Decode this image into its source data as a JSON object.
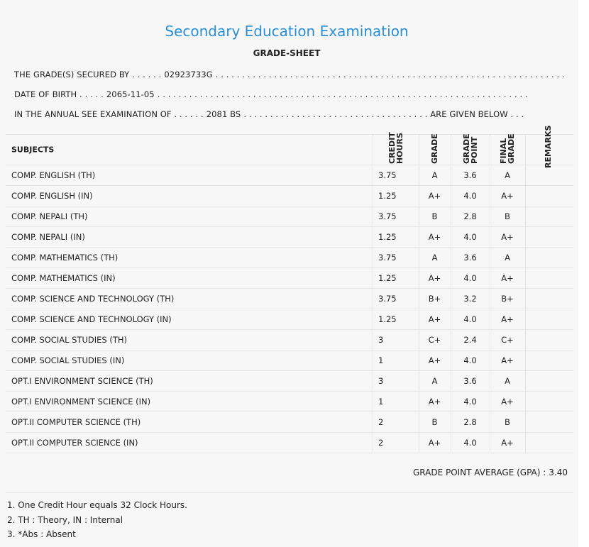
{
  "header": {
    "title": "Secondary Education Examination",
    "subtitle": "GRADE-SHEET"
  },
  "info": [
    {
      "label": "THE GRADE(S) SECURED BY . . . . . .",
      "value": "02923733G",
      "trail": ". . . . . . . . . . . . . . . . . . . . . . . . . . . . . . . . . . . . . . . . . . . . . . . . . . . . . . . . . . . . . . . . . ."
    },
    {
      "label": "DATE OF BIRTH . . . . .",
      "value": "2065-11-05",
      "trail": ". . . . . . . . . . . . . . . . . . . . . . . . . . . . . . . . . . . . . . . . . . . . . . . . . . . . . . . . . . . . . . . . . . . . . ."
    },
    {
      "label": "IN THE ANNUAL SEE EXAMINATION OF . . . . . .",
      "value": "2081 BS",
      "trail": ". . . . . . . . . . . . . . . . . . . . . . . . . . . . . . . . . . . ARE GIVEN BELOW . . ."
    }
  ],
  "table": {
    "columns": [
      "SUBJECTS",
      "CREDIT HOURS",
      "GRADE",
      "GRADE POINT",
      "FINAL GRADE",
      "REMARKS"
    ],
    "rows": [
      [
        "COMP. ENGLISH (TH)",
        "3.75",
        "A",
        "3.6",
        "A"
      ],
      [
        "COMP. ENGLISH (IN)",
        "1.25",
        "A+",
        "4.0",
        "A+"
      ],
      [
        "COMP. NEPALI (TH)",
        "3.75",
        "B",
        "2.8",
        "B"
      ],
      [
        "COMP. NEPALI (IN)",
        "1.25",
        "A+",
        "4.0",
        "A+"
      ],
      [
        "COMP. MATHEMATICS (TH)",
        "3.75",
        "A",
        "3.6",
        "A"
      ],
      [
        "COMP. MATHEMATICS (IN)",
        "1.25",
        "A+",
        "4.0",
        "A+"
      ],
      [
        "COMP. SCIENCE AND TECHNOLOGY (TH)",
        "3.75",
        "B+",
        "3.2",
        "B+"
      ],
      [
        "COMP. SCIENCE AND TECHNOLOGY (IN)",
        "1.25",
        "A+",
        "4.0",
        "A+"
      ],
      [
        "COMP. SOCIAL STUDIES (TH)",
        "3",
        "C+",
        "2.4",
        "C+"
      ],
      [
        "COMP. SOCIAL STUDIES (IN)",
        "1",
        "A+",
        "4.0",
        "A+"
      ],
      [
        "OPT.I ENVIRONMENT SCIENCE (TH)",
        "3",
        "A",
        "3.6",
        "A"
      ],
      [
        "OPT.I ENVIRONMENT SCIENCE (IN)",
        "1",
        "A+",
        "4.0",
        "A+"
      ],
      [
        "OPT.II COMPUTER SCIENCE (TH)",
        "2",
        "B",
        "2.8",
        "B"
      ],
      [
        "OPT.II COMPUTER SCIENCE (IN)",
        "2",
        "A+",
        "4.0",
        "A+"
      ]
    ]
  },
  "gpa": {
    "label": "GRADE POINT AVERAGE (GPA) :",
    "value": "3.40"
  },
  "notes": [
    "1. One Credit Hour equals 32 Clock Hours.",
    "2. TH : Theory, IN : Internal",
    "3. *Abs : Absent"
  ]
}
